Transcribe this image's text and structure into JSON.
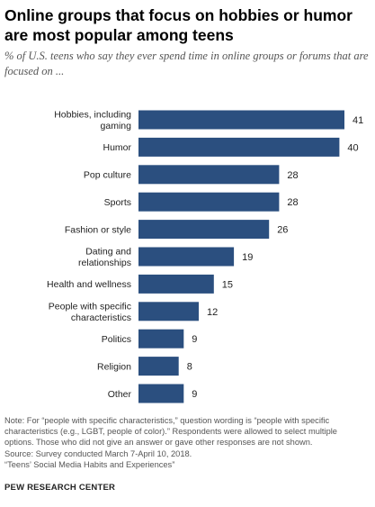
{
  "title": "Online groups that focus on hobbies or humor are most popular among teens",
  "subtitle": "% of U.S. teens who say they ever spend time in online groups or forums that are focused on ...",
  "chart_data": {
    "type": "bar",
    "orientation": "horizontal",
    "title": "Online groups that focus on hobbies or humor are most popular among teens",
    "subtitle": "% of U.S. teens who say they ever spend time in online groups or forums that are focused on ...",
    "categories": [
      [
        "Hobbies, including",
        "gaming"
      ],
      [
        "Humor"
      ],
      [
        "Pop culture"
      ],
      [
        "Sports"
      ],
      [
        "Fashion or style"
      ],
      [
        "Dating and",
        "relationships"
      ],
      [
        "Health and wellness"
      ],
      [
        "People with specific",
        "characteristics"
      ],
      [
        "Politics"
      ],
      [
        "Religion"
      ],
      [
        "Other"
      ]
    ],
    "values": [
      41,
      40,
      28,
      28,
      26,
      19,
      15,
      12,
      9,
      8,
      9
    ],
    "xlim": [
      0,
      41
    ],
    "bar_color": "#2b4f7f",
    "grid": false,
    "legend": "none"
  },
  "notes": [
    "Note: For “people with specific characteristics,” question wording is “people with specific",
    "characteristics (e.g., LGBT, people of color).” Respondents were allowed to select multiple",
    "options. Those who did not give an answer or gave other responses are not shown.",
    "Source: Survey conducted March 7-April 10, 2018.",
    "“Teens’ Social Media Habits and Experiences”"
  ],
  "brand": "PEW RESEARCH CENTER"
}
